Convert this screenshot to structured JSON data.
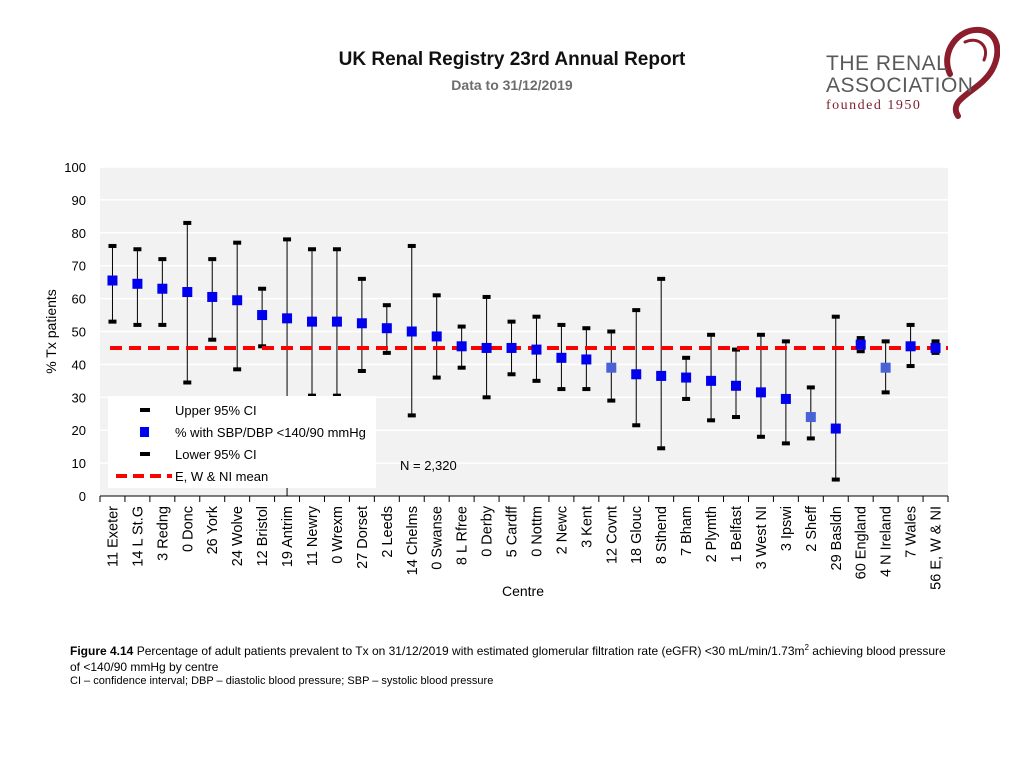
{
  "header": {
    "title": "UK Renal Registry 23rd Annual Report",
    "subtitle": "Data to 31/12/2019"
  },
  "logo": {
    "line1": "THE RENAL",
    "line2": "ASSOCIATION",
    "line3": "founded 1950"
  },
  "caption": {
    "figure_label": "Figure 4.14",
    "text_before_sup": " Percentage of adult patients prevalent to Tx on 31/12/2019 with estimated glomerular filtration rate (eGFR) <30 mL/min/1.73m",
    "sup": "2",
    "text_after_sup": " achieving blood pressure of <140/90 mmHg by centre",
    "note": "CI – confidence interval; DBP – diastolic blood pressure; SBP – systolic blood pressure"
  },
  "colors": {
    "point": "#0000ee",
    "point_light": "#4a62d8",
    "mean_line": "#ff0000",
    "plot_bg": "#f2f2f2",
    "grid": "#ffffff"
  },
  "chart_data": {
    "type": "scatter",
    "title": "",
    "xlabel": "Centre",
    "ylabel": "% Tx patients",
    "ylim": [
      0,
      100
    ],
    "yticks": [
      0,
      10,
      20,
      30,
      40,
      50,
      60,
      70,
      80,
      90,
      100
    ],
    "mean": 45,
    "annotation": "N = 2,320",
    "legend": {
      "upper": "Upper 95% CI",
      "point": "% with SBP/DBP <140/90 mmHg",
      "lower": "Lower 95% CI",
      "mean": "E, W & NI mean"
    },
    "categories": [
      "11 Exeter",
      "14 L St.G",
      "3 Redng",
      "0 Donc",
      "26 York",
      "24 Wolve",
      "12 Bristol",
      "19 Antrim",
      "11 Newry",
      "0 Wrexm",
      "27 Dorset",
      "2 Leeds",
      "14 Chelms",
      "0 Swanse",
      "8 L Rfree",
      "0 Derby",
      "5 Cardff",
      "0 Nottm",
      "2 Newc",
      "3 Kent",
      "12 Covnt",
      "18 Glouc",
      "8 Sthend",
      "7 Bham",
      "2 Plymth",
      "1 Belfast",
      "3 West NI",
      "3 Ipswi",
      "2 Sheff",
      "29 Basldn",
      "60 England",
      "4 N Ireland",
      "7 Wales",
      "56 E, W & NI"
    ],
    "values": [
      65.5,
      64.5,
      63,
      62,
      60.5,
      59.5,
      55,
      54,
      53,
      53,
      52.5,
      51,
      50,
      48.5,
      45.5,
      45,
      45,
      44.5,
      42,
      41.5,
      39,
      37,
      36.5,
      36,
      35,
      33.5,
      31.5,
      29.5,
      24,
      20.5,
      46,
      39,
      45.5,
      45
    ],
    "upper": [
      76,
      75,
      72,
      83,
      72,
      77,
      63,
      78,
      75,
      75,
      66,
      58,
      76,
      61,
      51.5,
      60.5,
      53,
      54.5,
      52,
      51,
      50,
      56.5,
      66,
      42,
      49,
      44.5,
      49,
      47,
      33,
      54.5,
      48,
      47,
      52,
      47
    ],
    "lower": [
      53,
      52,
      52,
      34.5,
      47.5,
      38.5,
      45.5,
      null,
      30.5,
      30.5,
      38,
      43.5,
      24.5,
      36,
      39,
      30,
      37,
      35,
      32.5,
      32.5,
      29,
      21.5,
      14.5,
      29.5,
      23,
      24,
      18,
      16,
      17.5,
      5,
      44,
      31.5,
      39.5,
      43.5
    ],
    "point_style": [
      "dark",
      "dark",
      "dark",
      "dark",
      "dark",
      "dark",
      "dark",
      "dark",
      "dark",
      "dark",
      "dark",
      "dark",
      "dark",
      "dark",
      "dark",
      "dark",
      "dark",
      "dark",
      "dark",
      "dark",
      "light",
      "dark",
      "dark",
      "dark",
      "dark",
      "dark",
      "dark",
      "dark",
      "light",
      "dark",
      "dark",
      "light",
      "dark",
      "dark"
    ]
  }
}
